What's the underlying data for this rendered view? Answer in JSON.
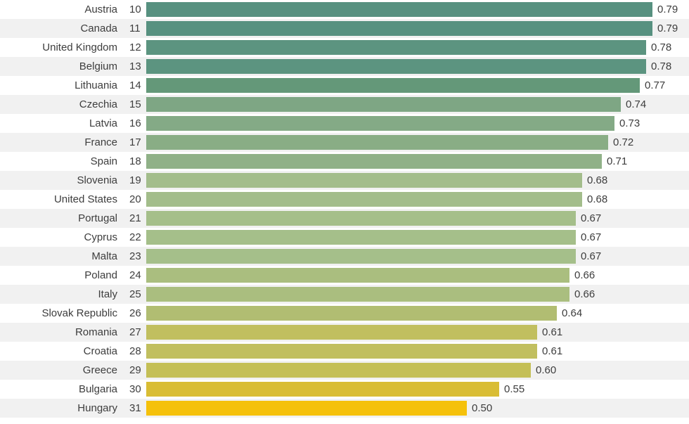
{
  "chart_data": {
    "type": "bar",
    "orientation": "horizontal",
    "title": "",
    "xlabel": "",
    "ylabel": "",
    "xlim": [
      0,
      0.846
    ],
    "grid": false,
    "legend": "none",
    "note": "Ranked horizontal bar chart of countries (ranks 10-31) with scores 0-1; bar color ramps teal-green to yellow as value decreases",
    "rows": [
      {
        "country": "Austria",
        "rank": "10",
        "value": 0.79,
        "value_label": "0.79",
        "color": "#579180"
      },
      {
        "country": "Canada",
        "rank": "11",
        "value": 0.79,
        "value_label": "0.79",
        "color": "#579180"
      },
      {
        "country": "United Kingdom",
        "rank": "12",
        "value": 0.78,
        "value_label": "0.78",
        "color": "#5c9480"
      },
      {
        "country": "Belgium",
        "rank": "13",
        "value": 0.78,
        "value_label": "0.78",
        "color": "#5c9480"
      },
      {
        "country": "Lithuania",
        "rank": "14",
        "value": 0.77,
        "value_label": "0.77",
        "color": "#649879"
      },
      {
        "country": "Czechia",
        "rank": "15",
        "value": 0.74,
        "value_label": "0.74",
        "color": "#7ea684"
      },
      {
        "country": "Latvia",
        "rank": "16",
        "value": 0.73,
        "value_label": "0.73",
        "color": "#84aa86"
      },
      {
        "country": "France",
        "rank": "17",
        "value": 0.72,
        "value_label": "0.72",
        "color": "#89ad85"
      },
      {
        "country": "Spain",
        "rank": "18",
        "value": 0.71,
        "value_label": "0.71",
        "color": "#90b188"
      },
      {
        "country": "Slovenia",
        "rank": "19",
        "value": 0.68,
        "value_label": "0.68",
        "color": "#a3bd8b"
      },
      {
        "country": "United States",
        "rank": "20",
        "value": 0.68,
        "value_label": "0.68",
        "color": "#a3bd8b"
      },
      {
        "country": "Portugal",
        "rank": "21",
        "value": 0.67,
        "value_label": "0.67",
        "color": "#a5bf8a"
      },
      {
        "country": "Cyprus",
        "rank": "22",
        "value": 0.67,
        "value_label": "0.67",
        "color": "#a5bf8a"
      },
      {
        "country": "Malta",
        "rank": "23",
        "value": 0.67,
        "value_label": "0.67",
        "color": "#a5bf8a"
      },
      {
        "country": "Poland",
        "rank": "24",
        "value": 0.66,
        "value_label": "0.66",
        "color": "#aabe7f"
      },
      {
        "country": "Italy",
        "rank": "25",
        "value": 0.66,
        "value_label": "0.66",
        "color": "#aabe7f"
      },
      {
        "country": "Slovak Republic",
        "rank": "26",
        "value": 0.64,
        "value_label": "0.64",
        "color": "#b1bd72"
      },
      {
        "country": "Romania",
        "rank": "27",
        "value": 0.61,
        "value_label": "0.61",
        "color": "#c1bf5f"
      },
      {
        "country": "Croatia",
        "rank": "28",
        "value": 0.61,
        "value_label": "0.61",
        "color": "#c1bf5f"
      },
      {
        "country": "Greece",
        "rank": "29",
        "value": 0.6,
        "value_label": "0.60",
        "color": "#c4bf56"
      },
      {
        "country": "Bulgaria",
        "rank": "30",
        "value": 0.55,
        "value_label": "0.55",
        "color": "#d9bd34"
      },
      {
        "country": "Hungary",
        "rank": "31",
        "value": 0.5,
        "value_label": "0.50",
        "color": "#f5c10b"
      }
    ]
  },
  "style": {
    "row_bg": "#ffffff",
    "row_alt_bg": "#f1f1f1",
    "text_color": "#3d3d3d"
  }
}
